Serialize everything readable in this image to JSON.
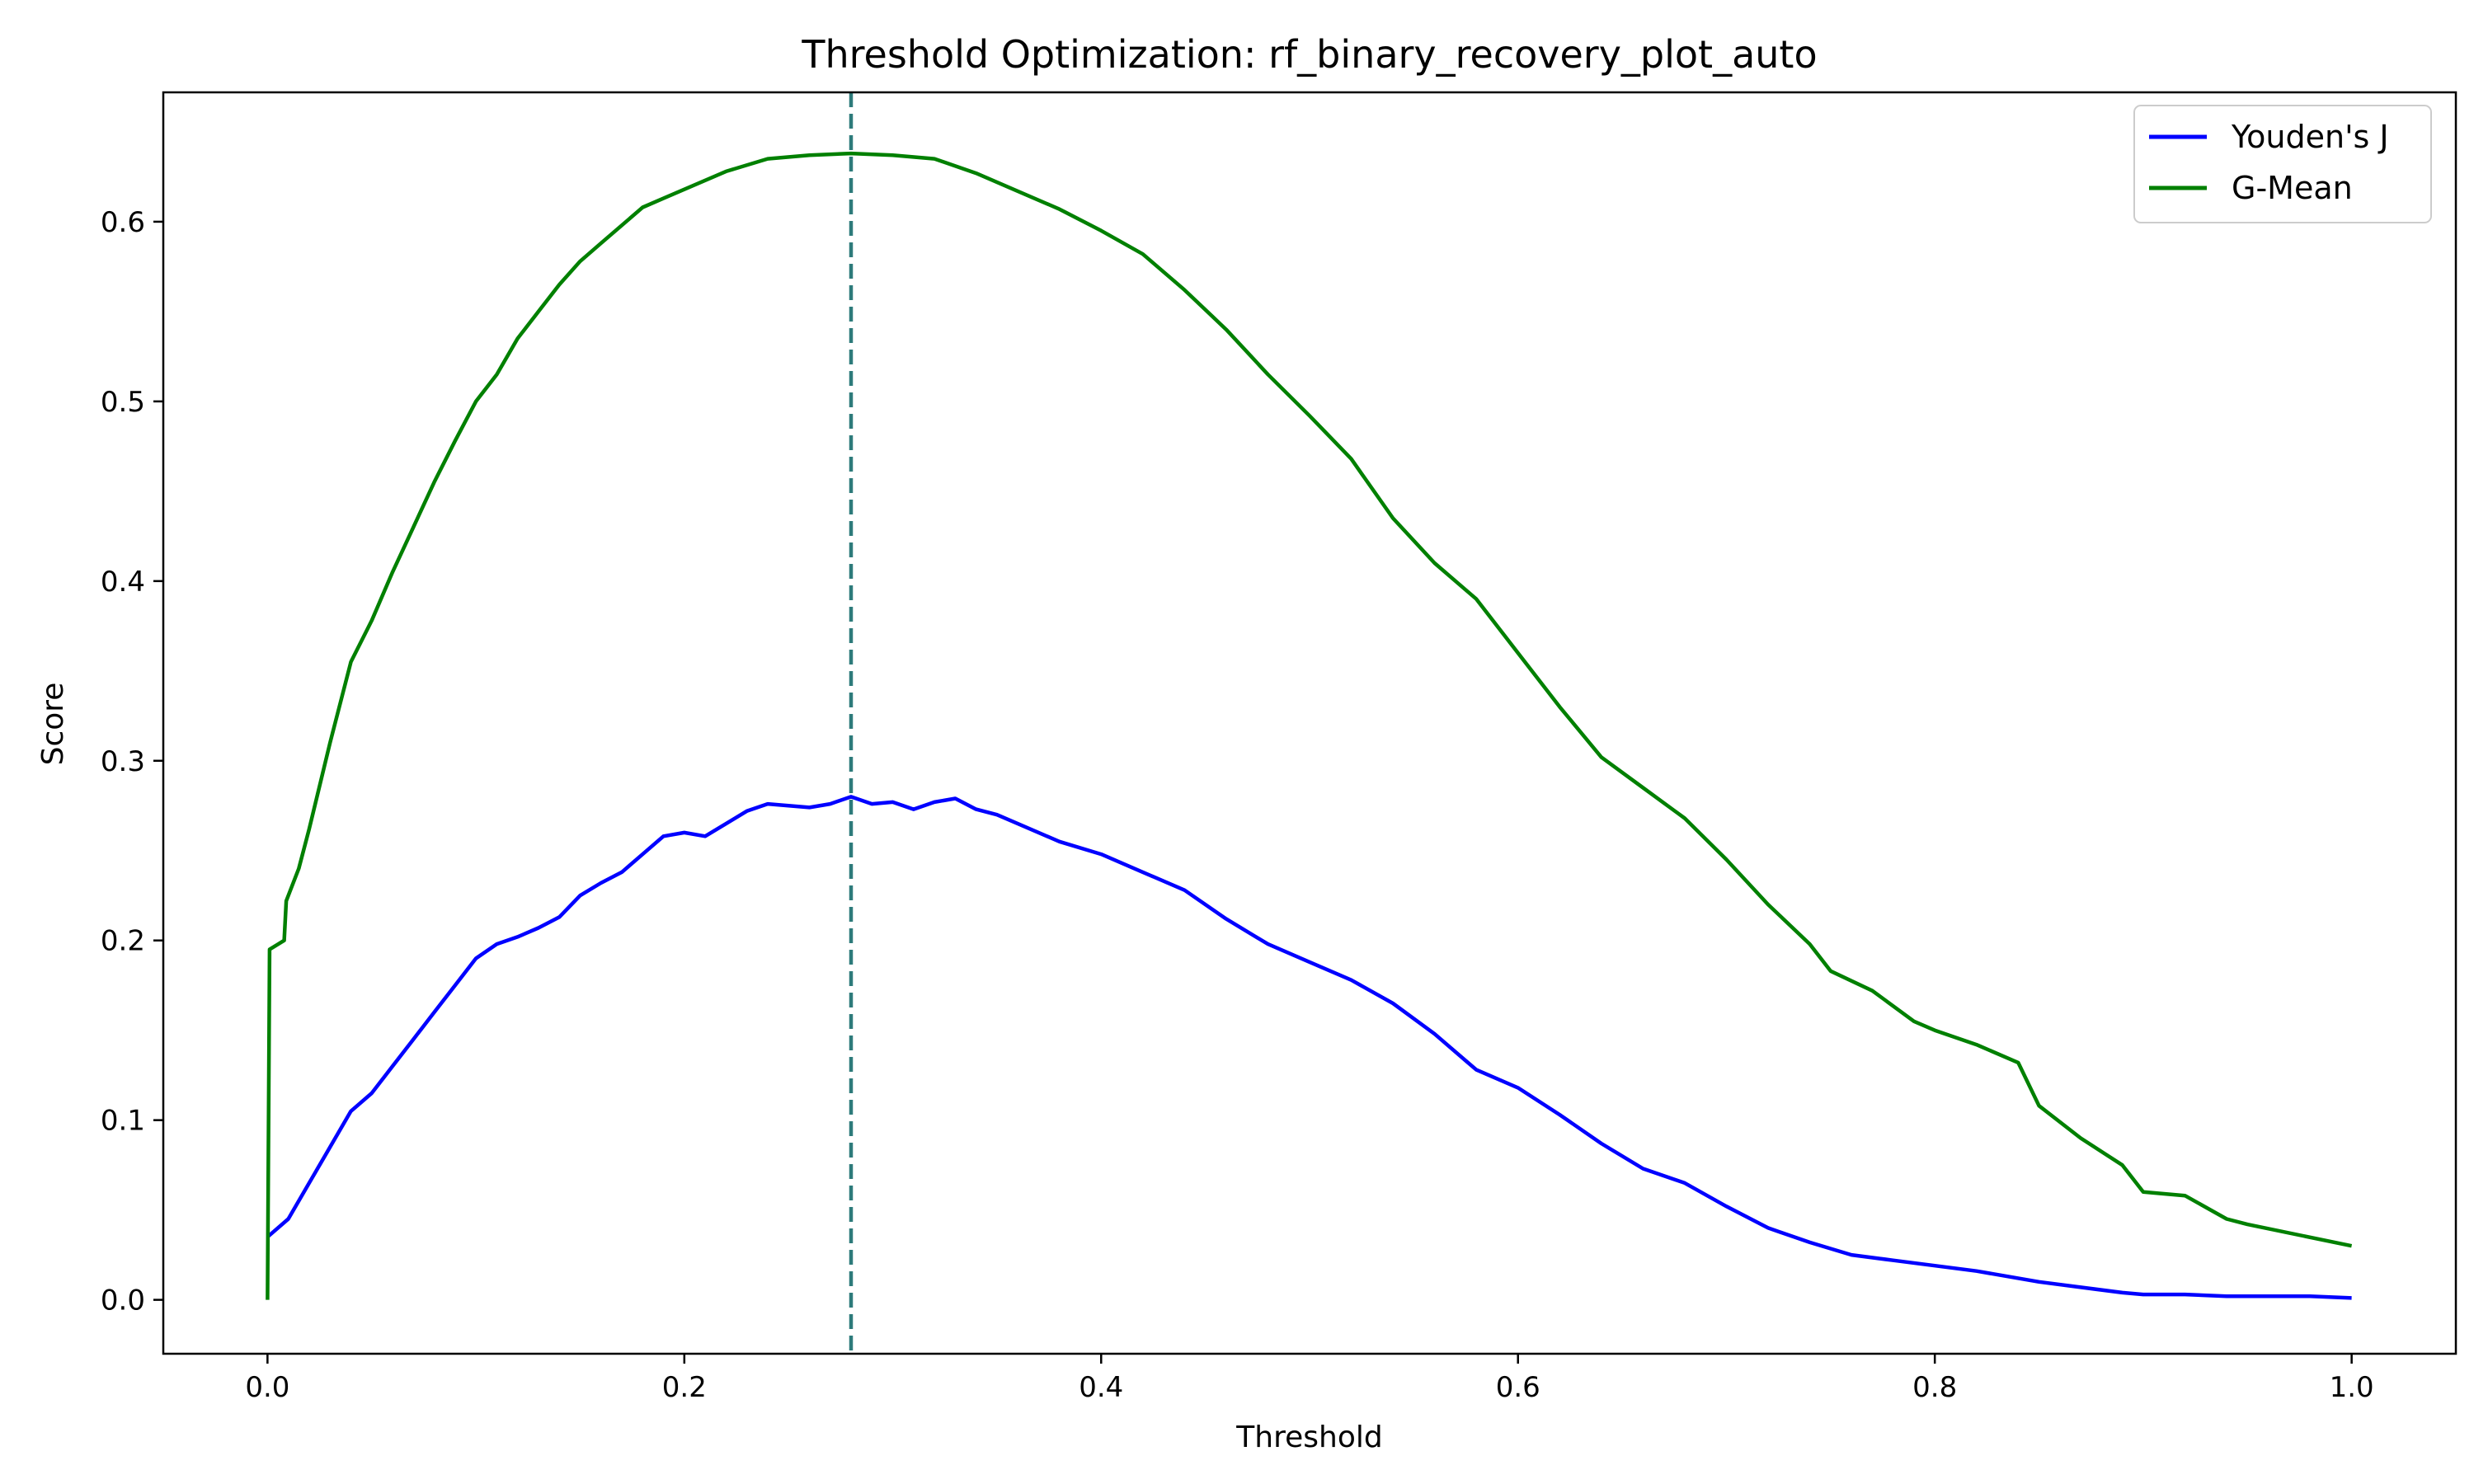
{
  "chart_data": {
    "type": "line",
    "title": "Threshold Optimization: rf_binary_recovery_plot_auto",
    "xlabel": "Threshold",
    "ylabel": "Score",
    "xlim": [
      -0.05,
      1.05
    ],
    "ylim": [
      -0.03,
      0.672
    ],
    "xticks": [
      0.0,
      0.2,
      0.4,
      0.6,
      0.8,
      1.0
    ],
    "xtick_labels": [
      "0.0",
      "0.2",
      "0.4",
      "0.6",
      "0.8",
      "1.0"
    ],
    "yticks": [
      0.0,
      0.1,
      0.2,
      0.3,
      0.4,
      0.5,
      0.6
    ],
    "ytick_labels": [
      "0.0",
      "0.1",
      "0.2",
      "0.3",
      "0.4",
      "0.5",
      "0.6"
    ],
    "grid": false,
    "legend_position": "top-right",
    "optimal_threshold_line": {
      "x": 0.28,
      "color": "#2e7b7b",
      "style": "dashed"
    },
    "series": [
      {
        "name": "Youden's J",
        "color": "#0000ff",
        "x": [
          0.0,
          0.001,
          0.01,
          0.02,
          0.03,
          0.04,
          0.05,
          0.06,
          0.07,
          0.08,
          0.09,
          0.1,
          0.11,
          0.12,
          0.13,
          0.14,
          0.15,
          0.16,
          0.17,
          0.18,
          0.19,
          0.2,
          0.21,
          0.22,
          0.23,
          0.24,
          0.25,
          0.26,
          0.27,
          0.28,
          0.29,
          0.3,
          0.31,
          0.32,
          0.33,
          0.34,
          0.35,
          0.36,
          0.38,
          0.4,
          0.42,
          0.44,
          0.46,
          0.48,
          0.5,
          0.52,
          0.54,
          0.56,
          0.58,
          0.6,
          0.62,
          0.64,
          0.66,
          0.68,
          0.7,
          0.72,
          0.74,
          0.76,
          0.78,
          0.8,
          0.82,
          0.85,
          0.87,
          0.89,
          0.9,
          0.92,
          0.94,
          0.96,
          0.98,
          1.0
        ],
        "y": [
          0.035,
          0.036,
          0.045,
          0.065,
          0.085,
          0.105,
          0.115,
          0.13,
          0.145,
          0.16,
          0.175,
          0.19,
          0.198,
          0.202,
          0.207,
          0.213,
          0.225,
          0.232,
          0.238,
          0.248,
          0.258,
          0.26,
          0.258,
          0.265,
          0.272,
          0.276,
          0.275,
          0.274,
          0.276,
          0.28,
          0.276,
          0.277,
          0.273,
          0.277,
          0.279,
          0.273,
          0.27,
          0.265,
          0.255,
          0.248,
          0.238,
          0.228,
          0.212,
          0.198,
          0.188,
          0.178,
          0.165,
          0.148,
          0.128,
          0.118,
          0.103,
          0.087,
          0.073,
          0.065,
          0.052,
          0.04,
          0.032,
          0.025,
          0.022,
          0.019,
          0.016,
          0.01,
          0.007,
          0.004,
          0.003,
          0.003,
          0.002,
          0.002,
          0.002,
          0.001
        ]
      },
      {
        "name": "G-Mean",
        "color": "#008000",
        "x": [
          0.0,
          0.001,
          0.008,
          0.009,
          0.015,
          0.02,
          0.03,
          0.04,
          0.05,
          0.06,
          0.07,
          0.08,
          0.09,
          0.1,
          0.11,
          0.12,
          0.13,
          0.14,
          0.15,
          0.16,
          0.17,
          0.18,
          0.19,
          0.2,
          0.22,
          0.24,
          0.26,
          0.28,
          0.3,
          0.32,
          0.34,
          0.36,
          0.38,
          0.4,
          0.42,
          0.44,
          0.46,
          0.48,
          0.5,
          0.52,
          0.54,
          0.56,
          0.58,
          0.6,
          0.62,
          0.64,
          0.66,
          0.68,
          0.7,
          0.72,
          0.74,
          0.75,
          0.77,
          0.79,
          0.8,
          0.82,
          0.84,
          0.85,
          0.87,
          0.89,
          0.9,
          0.92,
          0.94,
          0.95,
          1.0
        ],
        "y": [
          0.0,
          0.195,
          0.2,
          0.222,
          0.24,
          0.262,
          0.31,
          0.355,
          0.378,
          0.405,
          0.43,
          0.455,
          0.478,
          0.5,
          0.515,
          0.535,
          0.55,
          0.565,
          0.578,
          0.588,
          0.598,
          0.608,
          0.613,
          0.618,
          0.628,
          0.635,
          0.637,
          0.638,
          0.637,
          0.635,
          0.627,
          0.617,
          0.607,
          0.595,
          0.582,
          0.562,
          0.54,
          0.515,
          0.492,
          0.468,
          0.435,
          0.41,
          0.39,
          0.36,
          0.33,
          0.302,
          0.285,
          0.268,
          0.245,
          0.22,
          0.198,
          0.183,
          0.172,
          0.155,
          0.15,
          0.142,
          0.132,
          0.108,
          0.09,
          0.075,
          0.06,
          0.058,
          0.045,
          0.042,
          0.03
        ]
      }
    ]
  }
}
